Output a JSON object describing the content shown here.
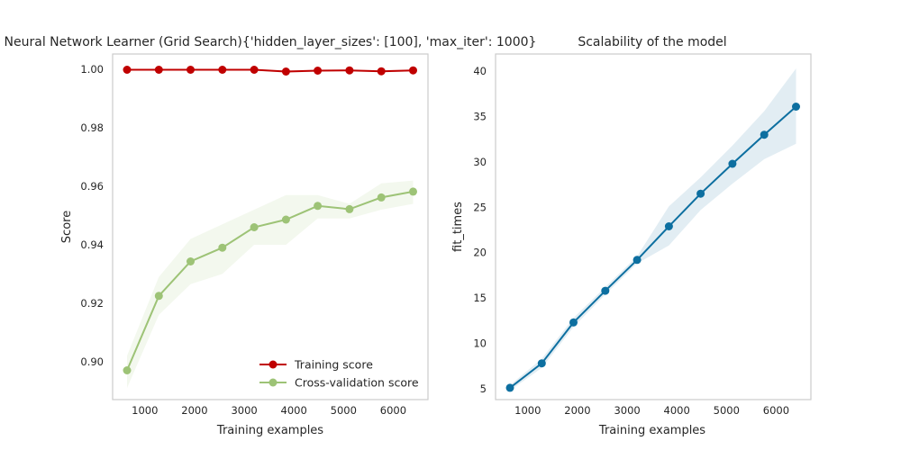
{
  "chart_data": [
    {
      "type": "line",
      "title": "Neural Network Learner (Grid Search){'hidden_layer_sizes': [100], 'max_iter': 1000}",
      "xlabel": "Training examples",
      "ylabel": "Score",
      "xlim": [
        350,
        6700
      ],
      "ylim": [
        0.887,
        1.0053
      ],
      "xticks": [
        1000,
        2000,
        3000,
        4000,
        5000,
        6000
      ],
      "yticks": [
        0.9,
        0.92,
        0.94,
        0.96,
        0.98,
        1.0
      ],
      "ytick_labels": [
        "0.90",
        "0.92",
        "0.94",
        "0.96",
        "0.98",
        "1.00"
      ],
      "grid": false,
      "legend_position": "lower-right",
      "x": [
        640,
        1280,
        1920,
        2560,
        3200,
        3840,
        4480,
        5120,
        5760,
        6400
      ],
      "series": [
        {
          "name": "Training score",
          "color": "#c00000",
          "values": [
            0.9999,
            0.9999,
            0.9999,
            0.9999,
            0.9999,
            0.9993,
            0.9996,
            0.9997,
            0.9994,
            0.9997
          ],
          "band_low": [
            0.9997,
            0.9997,
            0.9997,
            0.9997,
            0.9997,
            0.9989,
            0.9993,
            0.9995,
            0.999,
            0.9994
          ],
          "band_high": [
            1.0,
            1.0,
            1.0,
            1.0,
            1.0,
            0.9997,
            0.9999,
            0.9999,
            0.9998,
            1.0
          ]
        },
        {
          "name": "Cross-validation score",
          "color": "#9dc376",
          "values": [
            0.897,
            0.9225,
            0.9343,
            0.939,
            0.946,
            0.9486,
            0.9533,
            0.9522,
            0.9562,
            0.9582
          ],
          "band_low": [
            0.891,
            0.916,
            0.9265,
            0.93,
            0.94,
            0.94,
            0.949,
            0.949,
            0.952,
            0.954
          ],
          "band_high": [
            0.902,
            0.929,
            0.942,
            0.947,
            0.952,
            0.957,
            0.957,
            0.954,
            0.961,
            0.962
          ]
        }
      ]
    },
    {
      "type": "line",
      "title": "Scalability of the model",
      "xlabel": "Training examples",
      "ylabel": "fit_times",
      "xlim": [
        350,
        6700
      ],
      "ylim": [
        3.8,
        41.9
      ],
      "xticks": [
        1000,
        2000,
        3000,
        4000,
        5000,
        6000
      ],
      "yticks": [
        5,
        10,
        15,
        20,
        25,
        30,
        35,
        40
      ],
      "ytick_labels": [
        "5",
        "10",
        "15",
        "20",
        "25",
        "30",
        "35",
        "40"
      ],
      "grid": false,
      "x": [
        640,
        1280,
        1920,
        2560,
        3200,
        3840,
        4480,
        5120,
        5760,
        6400
      ],
      "series": [
        {
          "color": "#0d6fa0",
          "values": [
            5.1,
            7.8,
            12.3,
            15.8,
            19.2,
            22.9,
            26.5,
            29.8,
            33.0,
            36.1
          ],
          "band_low": [
            4.8,
            7.3,
            11.8,
            15.4,
            18.8,
            20.8,
            24.7,
            27.6,
            30.3,
            32.0
          ],
          "band_high": [
            5.4,
            8.3,
            12.8,
            16.2,
            19.6,
            25.1,
            28.3,
            31.8,
            35.6,
            40.3
          ]
        }
      ]
    }
  ]
}
